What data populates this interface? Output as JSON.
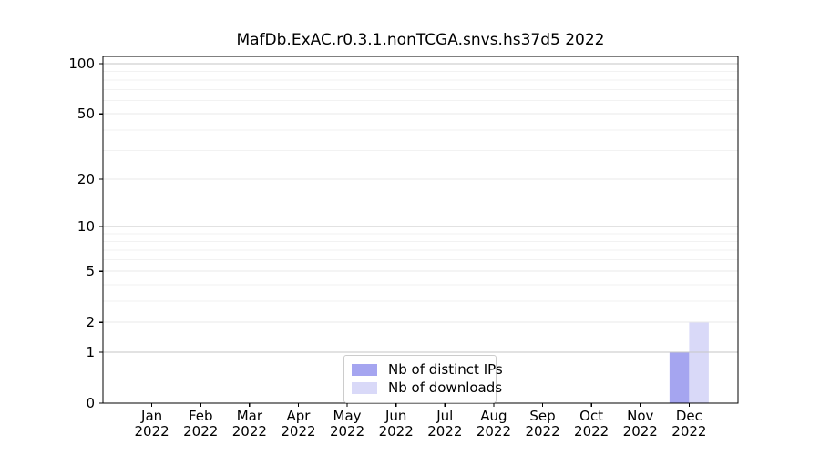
{
  "chart_data": {
    "type": "bar",
    "title": "MafDb.ExAC.r0.3.1.nonTCGA.snvs.hs37d5 2022",
    "categories": [
      "Jan",
      "Feb",
      "Mar",
      "Apr",
      "May",
      "Jun",
      "Jul",
      "Aug",
      "Sep",
      "Oct",
      "Nov",
      "Dec"
    ],
    "year": "2022",
    "series": [
      {
        "name": "Nb of distinct IPs",
        "color": "#a5a5f0",
        "values": [
          0,
          0,
          0,
          0,
          0,
          0,
          0,
          0,
          0,
          0,
          0,
          1
        ]
      },
      {
        "name": "Nb of downloads",
        "color": "#d9d9f8",
        "values": [
          0,
          0,
          0,
          0,
          0,
          0,
          0,
          0,
          0,
          0,
          0,
          2
        ]
      }
    ],
    "xlabel": "",
    "ylabel": "",
    "yscale": "log1p",
    "ylim": [
      0,
      110.5
    ],
    "yticks": [
      0,
      1,
      2,
      5,
      10,
      20,
      50,
      100
    ],
    "minor_gridlines": [
      3,
      4,
      6,
      7,
      8,
      9,
      30,
      40,
      60,
      70,
      80,
      90
    ],
    "decade_gridlines": [
      1,
      10,
      100
    ],
    "grid": true,
    "legend_position": "bottom-center"
  },
  "colors": {
    "spine": "#000000",
    "grid_major_decade": "#c6c6c6",
    "grid_major_other": "#e9e9e9",
    "grid_minor": "#f2f2f2",
    "legend_border": "#cccccc"
  }
}
